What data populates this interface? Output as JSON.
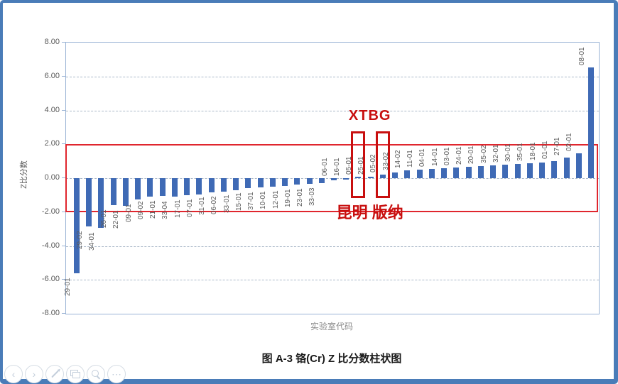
{
  "chart_data": {
    "type": "bar",
    "title": "图 A-3 铬(Cr)  Z 比分数柱状图",
    "xlabel": "实验室代码",
    "ylabel": "Z比分数",
    "ylim": [
      -8,
      8
    ],
    "yticks": [
      8,
      6,
      4,
      2,
      0,
      -2,
      -4,
      -6,
      -8
    ],
    "ytick_labels": [
      "8.00",
      "6.00",
      "4.00",
      "2.00",
      "0.00",
      "-2.00",
      "-4.00",
      "-6.00",
      "-8.00"
    ],
    "grid_values": [
      6,
      4,
      0,
      -4,
      -6
    ],
    "grid": true,
    "legend": false,
    "control_limits": {
      "upper": 2,
      "lower": -2
    },
    "bar_color": "#3f6ab5",
    "limit_color": "#e0262e",
    "categories": [
      "29-01",
      "29-02",
      "34-01",
      "26-01",
      "22-01",
      "09-01",
      "09-02",
      "21-01",
      "33-04",
      "17-01",
      "07-01",
      "31-01",
      "06-02",
      "33-01",
      "15-01",
      "37-01",
      "10-01",
      "12-01",
      "19-01",
      "23-01",
      "33-03",
      "06-01",
      "16-01",
      "05-01",
      "25-01",
      "05-02",
      "33-02",
      "14-02",
      "11-01",
      "04-01",
      "14-01",
      "03-01",
      "24-01",
      "20-01",
      "35-02",
      "32-01",
      "30-01",
      "35-01",
      "18-01",
      "01-01",
      "27-01",
      "02-01",
      "08-01"
    ],
    "values": [
      -5.6,
      -2.85,
      -2.95,
      -1.6,
      -1.65,
      -1.25,
      -1.1,
      -1.05,
      -1.1,
      -1.0,
      -0.95,
      -0.82,
      -0.78,
      -0.72,
      -0.6,
      -0.55,
      -0.5,
      -0.46,
      -0.38,
      -0.34,
      -0.3,
      -0.12,
      -0.05,
      0.08,
      0.1,
      0.22,
      0.32,
      0.45,
      0.5,
      0.56,
      0.6,
      0.64,
      0.68,
      0.72,
      0.76,
      0.8,
      0.84,
      0.86,
      0.92,
      1.0,
      1.2,
      1.45,
      6.55
    ],
    "annotations": {
      "label": "XTBG",
      "boxes": [
        {
          "target": "05-01"
        },
        {
          "target": "05-02"
        }
      ],
      "caption": "昆明 版纳",
      "color": "#c80f0f"
    }
  },
  "nav": {
    "icons": [
      {
        "id": "previous-slide",
        "glyph": "‹"
      },
      {
        "id": "next-slide",
        "glyph": "›"
      },
      {
        "id": "pen-annotate",
        "glyph": ""
      },
      {
        "id": "slide-sorter",
        "glyph": ""
      },
      {
        "id": "zoom",
        "glyph": ""
      },
      {
        "id": "more-options",
        "glyph": "⋯"
      }
    ]
  }
}
